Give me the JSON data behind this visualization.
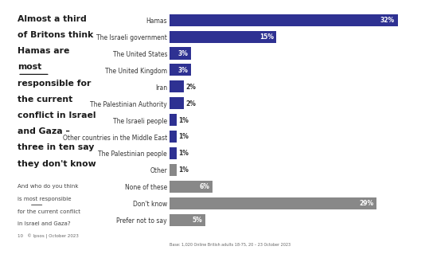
{
  "categories": [
    "Hamas",
    "The Israeli government",
    "The United States",
    "The United Kingdom",
    "Iran",
    "The Palestinian Authority",
    "The Israeli people",
    "Other countries in the Middle East",
    "The Palestinian people",
    "Other",
    "None of these",
    "Don't know",
    "Prefer not to say"
  ],
  "values": [
    32,
    15,
    3,
    3,
    2,
    2,
    1,
    1,
    1,
    1,
    6,
    29,
    5
  ],
  "bar_colors": [
    "#2e3192",
    "#2e3192",
    "#2e3192",
    "#2e3192",
    "#2e3192",
    "#2e3192",
    "#2e3192",
    "#2e3192",
    "#2e3192",
    "#888888",
    "#888888",
    "#888888",
    "#888888"
  ],
  "title_lines": [
    "Almost a third",
    "of Britons think",
    "Hamas are",
    "most",
    "responsible for",
    "the current",
    "conflict in Israel",
    "and Gaza –",
    "three in ten say",
    "they don't know"
  ],
  "title_underline_idx": 3,
  "subtitle_lines": [
    "And who do you think",
    "is most responsible",
    "for the current conflict",
    "in Israel and Gaza?"
  ],
  "subtitle_underline_idx": 1,
  "subtitle_underline_word": "most",
  "base_note": "Base: 1,020 Online British adults 18-75, 20 – 23 October 2023",
  "footer_left": "10   © Ipsos | October 2023",
  "xlim": [
    0,
    35
  ],
  "bg_color": "#ffffff",
  "logo_color": "#2e3192"
}
